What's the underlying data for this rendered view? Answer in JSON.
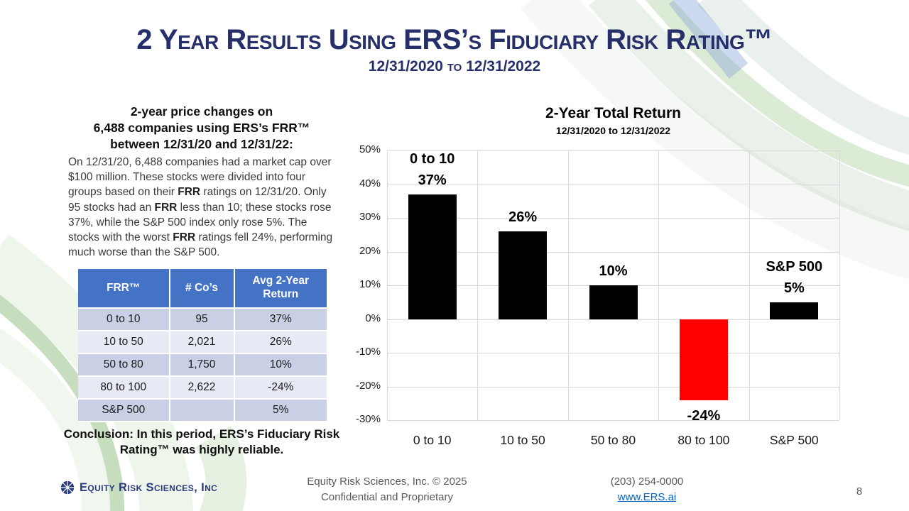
{
  "slide": {
    "title": "2 Year Results Using ERS’s Fiduciary Risk Rating™",
    "subtitle": "12/31/2020 to 12/31/2022",
    "page_number": "8"
  },
  "left_panel": {
    "heading_lines": [
      "2-year price changes on",
      "6,488 companies using ERS’s FRR™",
      "between 12/31/20 and 12/31/22:"
    ],
    "paragraph_segments": [
      {
        "t": "On 12/31/20, 6,488 companies had a market cap over $100 million. These stocks were divided into four groups based on their ",
        "b": false
      },
      {
        "t": "FRR",
        "b": true
      },
      {
        "t": " ratings on 12/31/20. Only 95 stocks had an ",
        "b": false
      },
      {
        "t": "FRR",
        "b": true
      },
      {
        "t": " less than 10; these stocks rose 37%, while the S&P 500 index only rose 5%. The stocks with the worst ",
        "b": false
      },
      {
        "t": "FRR",
        "b": true
      },
      {
        "t": " ratings fell 24%, performing much worse than the S&P 500.",
        "b": false
      }
    ],
    "conclusion": "Conclusion: In this period, ERS’s Fiduciary Risk Rating™ was highly reliable."
  },
  "table": {
    "headers": [
      "FRR™",
      "# Co’s",
      "Avg 2-Year Return"
    ],
    "rows": [
      [
        "0 to 10",
        "95",
        "37%"
      ],
      [
        "10 to 50",
        "2,021",
        "26%"
      ],
      [
        "50 to 80",
        "1,750",
        "10%"
      ],
      [
        "80 to 100",
        "2,622",
        "-24%"
      ],
      [
        "S&P 500",
        "",
        "5%"
      ]
    ]
  },
  "chart_data": {
    "type": "bar",
    "title": "2-Year Total Return",
    "subtitle": "12/31/2020 to 12/31/2022",
    "categories": [
      "0 to 10",
      "10 to 50",
      "50 to 80",
      "80 to 100",
      "S&P 500"
    ],
    "values": [
      37,
      26,
      10,
      -24,
      5
    ],
    "bar_colors": [
      "#000000",
      "#000000",
      "#000000",
      "#FF0000",
      "#000000"
    ],
    "data_labels": [
      [
        "0 to 10",
        "37%"
      ],
      [
        "26%"
      ],
      [
        "10%"
      ],
      [
        "-24%"
      ],
      [
        "S&P 500",
        "5%"
      ]
    ],
    "label_positions": [
      "above",
      "above",
      "above",
      "below",
      "above"
    ],
    "ylim": [
      -30,
      50
    ],
    "ytick_step": 10,
    "ytick_labels": [
      "50%",
      "40%",
      "30%",
      "20%",
      "10%",
      "0%",
      "-10%",
      "-20%",
      "-30%"
    ],
    "grid": true,
    "legend": "none"
  },
  "footer": {
    "logo_text": "Equity Risk Sciences, Inc",
    "copyright_line1": "Equity Risk Sciences, Inc. © 2025",
    "copyright_line2": "Confidential and Proprietary",
    "phone": "(203) 254-0000",
    "website": "www.ERS.ai"
  },
  "colors": {
    "title_navy": "#272F6B",
    "table_header_blue": "#4472C4",
    "table_row_dark": "#C9D0E6",
    "table_row_light": "#E7EAF4",
    "bar_black": "#000000",
    "bar_negative_red": "#FF0000",
    "link_blue": "#0563C1",
    "footer_gray": "#595959"
  }
}
